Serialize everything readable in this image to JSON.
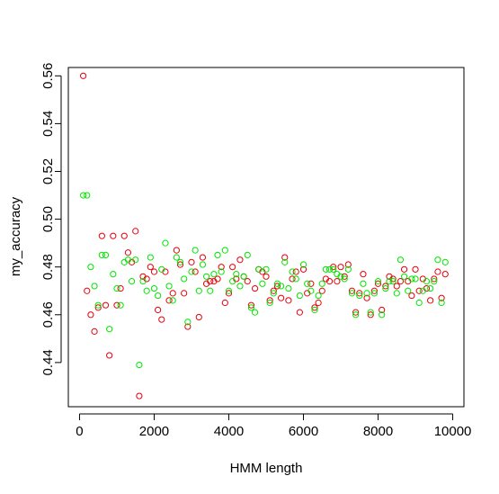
{
  "chart_data": {
    "type": "scatter",
    "title": "",
    "xlabel": "HMM length",
    "ylabel": "my_accuracy",
    "xlim": [
      -300,
      10300
    ],
    "ylim": [
      0.4215,
      0.5635
    ],
    "x_ticks": [
      0,
      2000,
      4000,
      6000,
      8000,
      10000
    ],
    "x_tick_labels": [
      "0",
      "2000",
      "4000",
      "6000",
      "8000",
      "10000"
    ],
    "y_ticks": [
      0.44,
      0.46,
      0.48,
      0.5,
      0.52,
      0.54,
      0.56
    ],
    "y_tick_labels": [
      "0.44",
      "0.46",
      "0.48",
      "0.50",
      "0.52",
      "0.54",
      "0.56"
    ],
    "grid": false,
    "marker": "open-circle",
    "series": [
      {
        "name": "red",
        "color": "#e8000b",
        "points": [
          [
            100,
            0.56
          ],
          [
            200,
            0.47
          ],
          [
            300,
            0.46
          ],
          [
            400,
            0.453
          ],
          [
            500,
            0.463
          ],
          [
            600,
            0.493
          ],
          [
            700,
            0.464
          ],
          [
            800,
            0.443
          ],
          [
            900,
            0.493
          ],
          [
            1000,
            0.464
          ],
          [
            1100,
            0.471
          ],
          [
            1200,
            0.493
          ],
          [
            1300,
            0.486
          ],
          [
            1400,
            0.482
          ],
          [
            1500,
            0.495
          ],
          [
            1600,
            0.426
          ],
          [
            1700,
            0.476
          ],
          [
            1800,
            0.475
          ],
          [
            1900,
            0.48
          ],
          [
            2000,
            0.478
          ],
          [
            2100,
            0.462
          ],
          [
            2200,
            0.458
          ],
          [
            2300,
            0.478
          ],
          [
            2400,
            0.466
          ],
          [
            2500,
            0.469
          ],
          [
            2600,
            0.487
          ],
          [
            2700,
            0.481
          ],
          [
            2800,
            0.469
          ],
          [
            2900,
            0.455
          ],
          [
            3000,
            0.482
          ],
          [
            3100,
            0.478
          ],
          [
            3200,
            0.459
          ],
          [
            3300,
            0.484
          ],
          [
            3400,
            0.473
          ],
          [
            3500,
            0.474
          ],
          [
            3600,
            0.474
          ],
          [
            3700,
            0.475
          ],
          [
            3800,
            0.48
          ],
          [
            3900,
            0.465
          ],
          [
            4000,
            0.469
          ],
          [
            4100,
            0.48
          ],
          [
            4200,
            0.475
          ],
          [
            4300,
            0.483
          ],
          [
            4400,
            0.476
          ],
          [
            4500,
            0.474
          ],
          [
            4600,
            0.464
          ],
          [
            4700,
            0.471
          ],
          [
            4800,
            0.479
          ],
          [
            4900,
            0.478
          ],
          [
            5000,
            0.476
          ],
          [
            5100,
            0.466
          ],
          [
            5200,
            0.47
          ],
          [
            5300,
            0.472
          ],
          [
            5400,
            0.467
          ],
          [
            5500,
            0.484
          ],
          [
            5600,
            0.466
          ],
          [
            5700,
            0.475
          ],
          [
            5800,
            0.478
          ],
          [
            5900,
            0.461
          ],
          [
            6000,
            0.479
          ],
          [
            6100,
            0.469
          ],
          [
            6200,
            0.473
          ],
          [
            6300,
            0.463
          ],
          [
            6400,
            0.465
          ],
          [
            6500,
            0.47
          ],
          [
            6600,
            0.475
          ],
          [
            6700,
            0.474
          ],
          [
            6800,
            0.48
          ],
          [
            6900,
            0.474
          ],
          [
            7000,
            0.48
          ],
          [
            7100,
            0.476
          ],
          [
            7200,
            0.481
          ],
          [
            7300,
            0.47
          ],
          [
            7400,
            0.461
          ],
          [
            7500,
            0.469
          ],
          [
            7600,
            0.477
          ],
          [
            7700,
            0.467
          ],
          [
            7800,
            0.46
          ],
          [
            7900,
            0.47
          ],
          [
            8000,
            0.473
          ],
          [
            8100,
            0.462
          ],
          [
            8200,
            0.472
          ],
          [
            8300,
            0.476
          ],
          [
            8400,
            0.475
          ],
          [
            8500,
            0.472
          ],
          [
            8600,
            0.474
          ],
          [
            8700,
            0.479
          ],
          [
            8800,
            0.474
          ],
          [
            8900,
            0.468
          ],
          [
            9000,
            0.479
          ],
          [
            9100,
            0.47
          ],
          [
            9200,
            0.475
          ],
          [
            9300,
            0.471
          ],
          [
            9400,
            0.466
          ],
          [
            9500,
            0.475
          ],
          [
            9600,
            0.478
          ],
          [
            9700,
            0.467
          ],
          [
            9800,
            0.477
          ]
        ]
      },
      {
        "name": "green",
        "color": "#00e600",
        "points": [
          [
            100,
            0.51
          ],
          [
            200,
            0.51
          ],
          [
            300,
            0.48
          ],
          [
            400,
            0.472
          ],
          [
            500,
            0.464
          ],
          [
            600,
            0.485
          ],
          [
            700,
            0.485
          ],
          [
            800,
            0.454
          ],
          [
            900,
            0.477
          ],
          [
            1000,
            0.471
          ],
          [
            1100,
            0.464
          ],
          [
            1200,
            0.482
          ],
          [
            1300,
            0.483
          ],
          [
            1400,
            0.474
          ],
          [
            1500,
            0.483
          ],
          [
            1600,
            0.439
          ],
          [
            1700,
            0.474
          ],
          [
            1800,
            0.47
          ],
          [
            1900,
            0.484
          ],
          [
            2000,
            0.471
          ],
          [
            2100,
            0.468
          ],
          [
            2200,
            0.479
          ],
          [
            2300,
            0.49
          ],
          [
            2400,
            0.472
          ],
          [
            2500,
            0.466
          ],
          [
            2600,
            0.484
          ],
          [
            2700,
            0.482
          ],
          [
            2800,
            0.475
          ],
          [
            2900,
            0.457
          ],
          [
            3000,
            0.478
          ],
          [
            3100,
            0.487
          ],
          [
            3200,
            0.47
          ],
          [
            3300,
            0.481
          ],
          [
            3400,
            0.476
          ],
          [
            3500,
            0.47
          ],
          [
            3600,
            0.477
          ],
          [
            3700,
            0.485
          ],
          [
            3800,
            0.478
          ],
          [
            3900,
            0.487
          ],
          [
            4000,
            0.47
          ],
          [
            4100,
            0.474
          ],
          [
            4200,
            0.477
          ],
          [
            4300,
            0.472
          ],
          [
            4400,
            0.476
          ],
          [
            4500,
            0.485
          ],
          [
            4600,
            0.463
          ],
          [
            4700,
            0.461
          ],
          [
            4800,
            0.479
          ],
          [
            4900,
            0.473
          ],
          [
            5000,
            0.479
          ],
          [
            5100,
            0.465
          ],
          [
            5200,
            0.469
          ],
          [
            5300,
            0.473
          ],
          [
            5400,
            0.472
          ],
          [
            5500,
            0.482
          ],
          [
            5600,
            0.471
          ],
          [
            5700,
            0.478
          ],
          [
            5800,
            0.475
          ],
          [
            5900,
            0.468
          ],
          [
            6000,
            0.481
          ],
          [
            6100,
            0.473
          ],
          [
            6200,
            0.47
          ],
          [
            6300,
            0.462
          ],
          [
            6400,
            0.468
          ],
          [
            6500,
            0.473
          ],
          [
            6600,
            0.479
          ],
          [
            6700,
            0.479
          ],
          [
            6800,
            0.479
          ],
          [
            6900,
            0.477
          ],
          [
            7000,
            0.476
          ],
          [
            7100,
            0.475
          ],
          [
            7200,
            0.479
          ],
          [
            7300,
            0.469
          ],
          [
            7400,
            0.46
          ],
          [
            7500,
            0.468
          ],
          [
            7600,
            0.473
          ],
          [
            7700,
            0.469
          ],
          [
            7800,
            0.461
          ],
          [
            7900,
            0.469
          ],
          [
            8000,
            0.474
          ],
          [
            8100,
            0.46
          ],
          [
            8200,
            0.471
          ],
          [
            8300,
            0.474
          ],
          [
            8400,
            0.474
          ],
          [
            8500,
            0.469
          ],
          [
            8600,
            0.483
          ],
          [
            8700,
            0.476
          ],
          [
            8800,
            0.47
          ],
          [
            8900,
            0.475
          ],
          [
            9000,
            0.475
          ],
          [
            9100,
            0.465
          ],
          [
            9200,
            0.47
          ],
          [
            9300,
            0.474
          ],
          [
            9400,
            0.471
          ],
          [
            9500,
            0.474
          ],
          [
            9600,
            0.483
          ],
          [
            9700,
            0.465
          ],
          [
            9800,
            0.482
          ]
        ]
      }
    ]
  }
}
